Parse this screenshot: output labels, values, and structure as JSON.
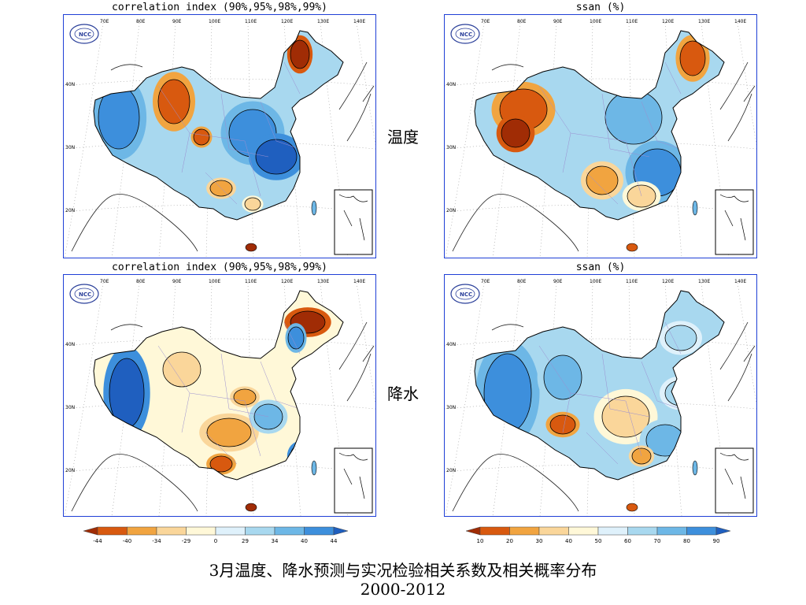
{
  "panels": [
    {
      "title": "correlation index (90%,95%,98%,99%)",
      "kind": "corr"
    },
    {
      "title": "ssan (%)",
      "kind": "ssan"
    },
    {
      "title": "correlation index (90%,95%,98%,99%)",
      "kind": "corr"
    },
    {
      "title": "ssan (%)",
      "kind": "ssan"
    }
  ],
  "row_labels": [
    "温度",
    "降水"
  ],
  "longitude_ticks": [
    "70E",
    "80E",
    "90E",
    "100E",
    "110E",
    "120E",
    "130E",
    "140E"
  ],
  "latitude_ticks": [
    "40N",
    "30N",
    "20N"
  ],
  "logo_text": "NCC",
  "colorbars": [
    {
      "ticks": [
        "-44",
        "-40",
        "-34",
        "-29",
        "0",
        "29",
        "34",
        "40",
        "44"
      ],
      "colors": [
        "#a02c05",
        "#d8590f",
        "#f1a440",
        "#fad69a",
        "#fff8d8",
        "#dff1fb",
        "#a8d8ef",
        "#6db7e6",
        "#3d8fdc",
        "#1f5fbf"
      ]
    },
    {
      "ticks": [
        "10",
        "20",
        "30",
        "40",
        "50",
        "60",
        "70",
        "80",
        "90"
      ],
      "colors": [
        "#a02c05",
        "#d8590f",
        "#f1a440",
        "#fad69a",
        "#fff8d8",
        "#dff1fb",
        "#a8d8ef",
        "#6db7e6",
        "#3d8fdc",
        "#1f5fbf"
      ]
    }
  ],
  "caption": {
    "line1": "3月温度、降水预测与实况检验相关系数及相关概率分布",
    "line2": "2000-2012"
  }
}
